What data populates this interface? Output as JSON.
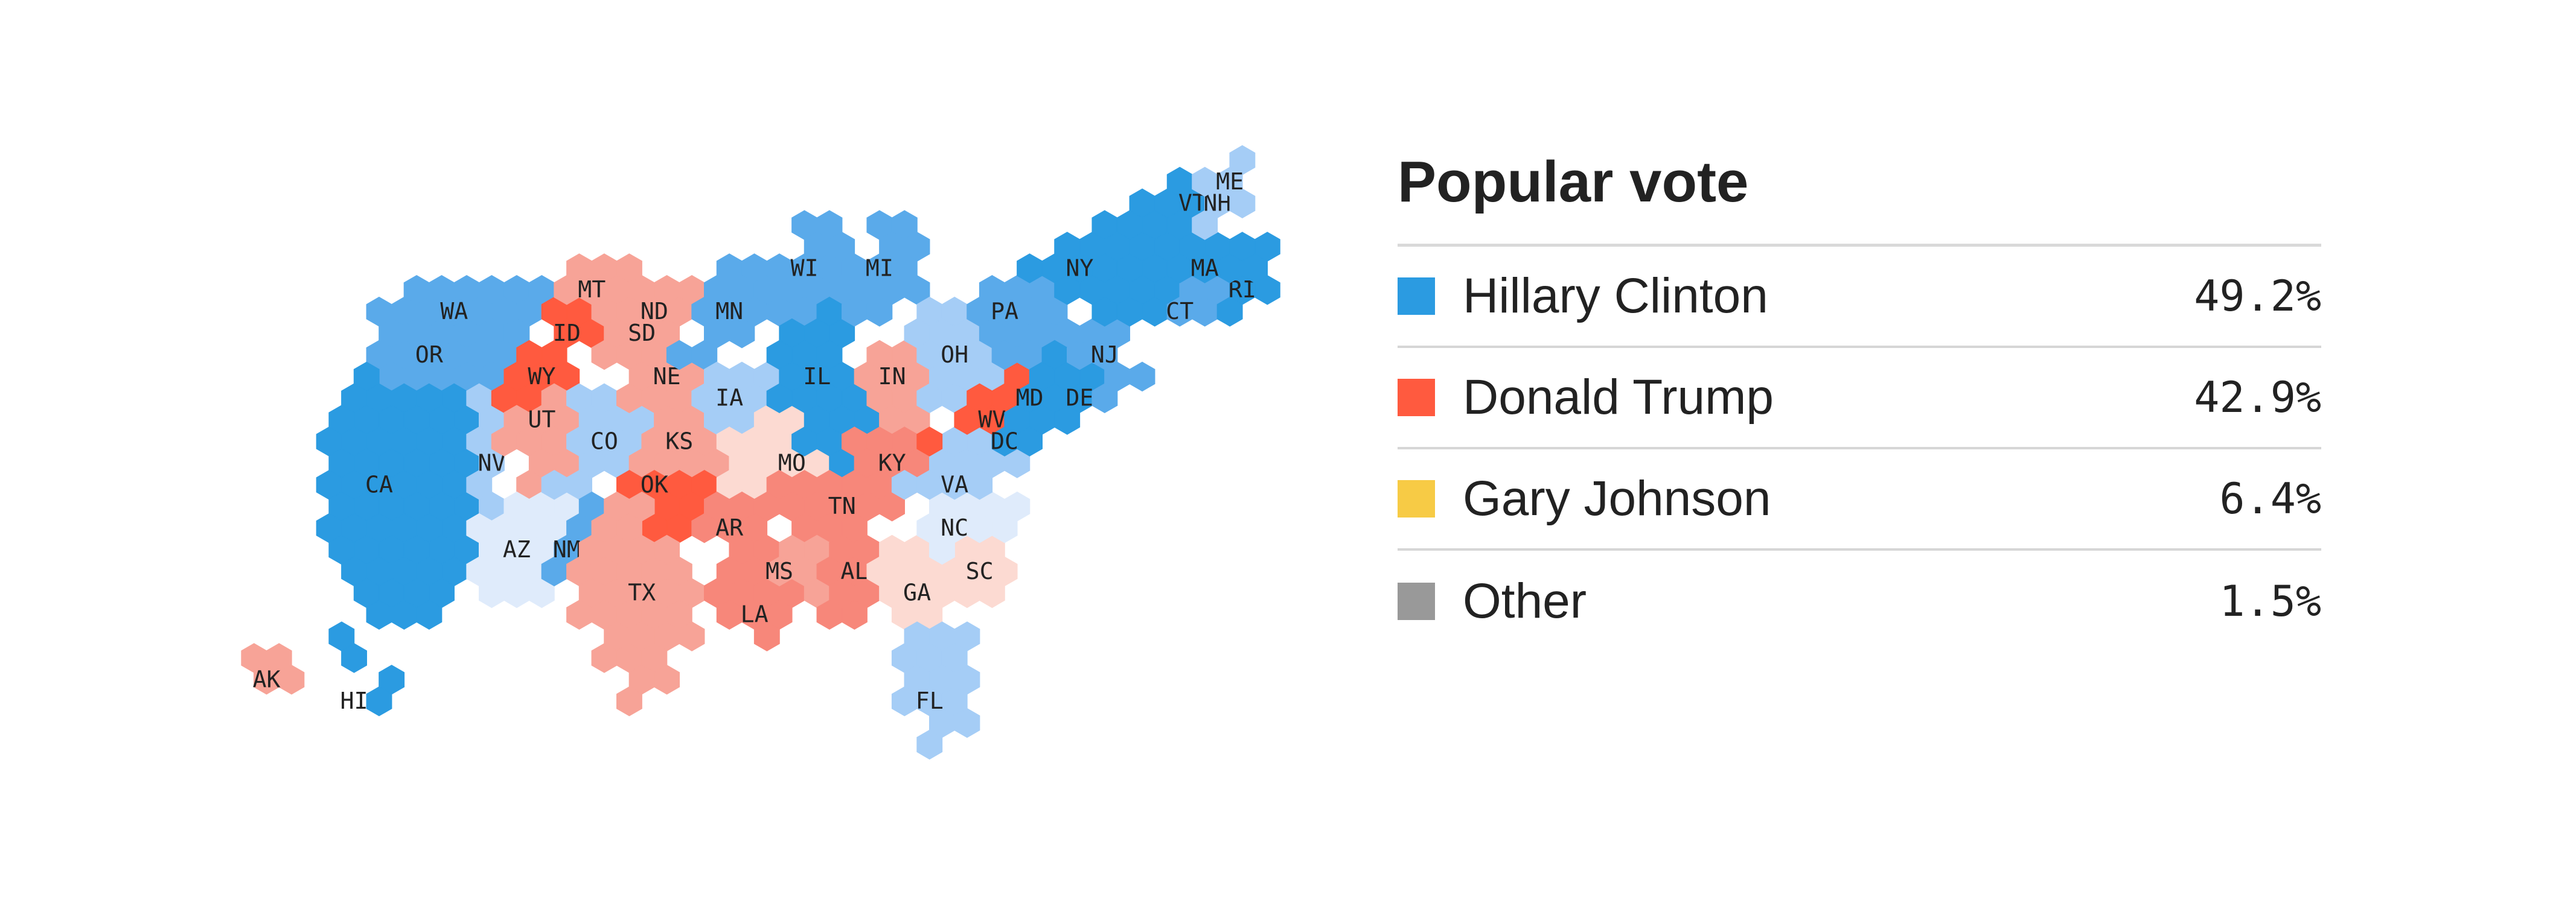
{
  "legend": {
    "title": "Popular vote",
    "entries": [
      {
        "name": "Hillary Clinton",
        "value": "49.2%",
        "color": "#2b9be1"
      },
      {
        "name": "Donald Trump",
        "value": "42.9%",
        "color": "#ff5a3f"
      },
      {
        "name": "Gary Johnson",
        "value": "6.4%",
        "color": "#f7cb45"
      },
      {
        "name": "Other",
        "value": "1.5%",
        "color": "#999999"
      }
    ]
  },
  "colors": {
    "solid_dem": "#2b9be1",
    "likely_dem": "#5aaaea",
    "lean_dem": "#a5cdf6",
    "tossup_dem": "#dfebfb",
    "tossup_rep": "#fcdad2",
    "lean_rep": "#f7a397",
    "likely_rep": "#f7877a",
    "solid_rep": "#ff5a3f"
  },
  "states": [
    {
      "abbr": "WA",
      "lean": "likely_dem"
    },
    {
      "abbr": "OR",
      "lean": "likely_dem"
    },
    {
      "abbr": "CA",
      "lean": "solid_dem"
    },
    {
      "abbr": "NV",
      "lean": "lean_dem"
    },
    {
      "abbr": "ID",
      "lean": "solid_rep"
    },
    {
      "abbr": "MT",
      "lean": "lean_rep"
    },
    {
      "abbr": "WY",
      "lean": "solid_rep"
    },
    {
      "abbr": "UT",
      "lean": "lean_rep"
    },
    {
      "abbr": "AZ",
      "lean": "tossup_dem"
    },
    {
      "abbr": "CO",
      "lean": "lean_dem"
    },
    {
      "abbr": "NM",
      "lean": "likely_dem"
    },
    {
      "abbr": "ND",
      "lean": "lean_rep"
    },
    {
      "abbr": "SD",
      "lean": "lean_rep"
    },
    {
      "abbr": "NE",
      "lean": "lean_rep"
    },
    {
      "abbr": "KS",
      "lean": "lean_rep"
    },
    {
      "abbr": "OK",
      "lean": "solid_rep"
    },
    {
      "abbr": "TX",
      "lean": "lean_rep"
    },
    {
      "abbr": "MN",
      "lean": "likely_dem"
    },
    {
      "abbr": "IA",
      "lean": "lean_dem"
    },
    {
      "abbr": "MO",
      "lean": "tossup_rep"
    },
    {
      "abbr": "AR",
      "lean": "likely_rep"
    },
    {
      "abbr": "LA",
      "lean": "likely_rep"
    },
    {
      "abbr": "WI",
      "lean": "likely_dem"
    },
    {
      "abbr": "IL",
      "lean": "solid_dem"
    },
    {
      "abbr": "MI",
      "lean": "likely_dem"
    },
    {
      "abbr": "IN",
      "lean": "lean_rep"
    },
    {
      "abbr": "OH",
      "lean": "lean_dem"
    },
    {
      "abbr": "KY",
      "lean": "likely_rep"
    },
    {
      "abbr": "TN",
      "lean": "likely_rep"
    },
    {
      "abbr": "MS",
      "lean": "lean_rep"
    },
    {
      "abbr": "AL",
      "lean": "likely_rep"
    },
    {
      "abbr": "GA",
      "lean": "tossup_rep"
    },
    {
      "abbr": "FL",
      "lean": "lean_dem"
    },
    {
      "abbr": "SC",
      "lean": "tossup_rep"
    },
    {
      "abbr": "NC",
      "lean": "tossup_dem"
    },
    {
      "abbr": "VA",
      "lean": "lean_dem"
    },
    {
      "abbr": "WV",
      "lean": "solid_rep"
    },
    {
      "abbr": "PA",
      "lean": "likely_dem"
    },
    {
      "abbr": "MD",
      "lean": "solid_dem"
    },
    {
      "abbr": "DC",
      "lean": "solid_dem"
    },
    {
      "abbr": "DE",
      "lean": "solid_dem"
    },
    {
      "abbr": "NJ",
      "lean": "likely_dem"
    },
    {
      "abbr": "NY",
      "lean": "solid_dem"
    },
    {
      "abbr": "CT",
      "lean": "likely_dem"
    },
    {
      "abbr": "RI",
      "lean": "solid_dem"
    },
    {
      "abbr": "MA",
      "lean": "solid_dem"
    },
    {
      "abbr": "VT",
      "lean": "solid_dem"
    },
    {
      "abbr": "NH",
      "lean": "lean_dem"
    },
    {
      "abbr": "ME",
      "lean": "lean_dem"
    },
    {
      "abbr": "AK",
      "lean": "lean_rep"
    },
    {
      "abbr": "HI",
      "lean": "solid_dem"
    }
  ]
}
